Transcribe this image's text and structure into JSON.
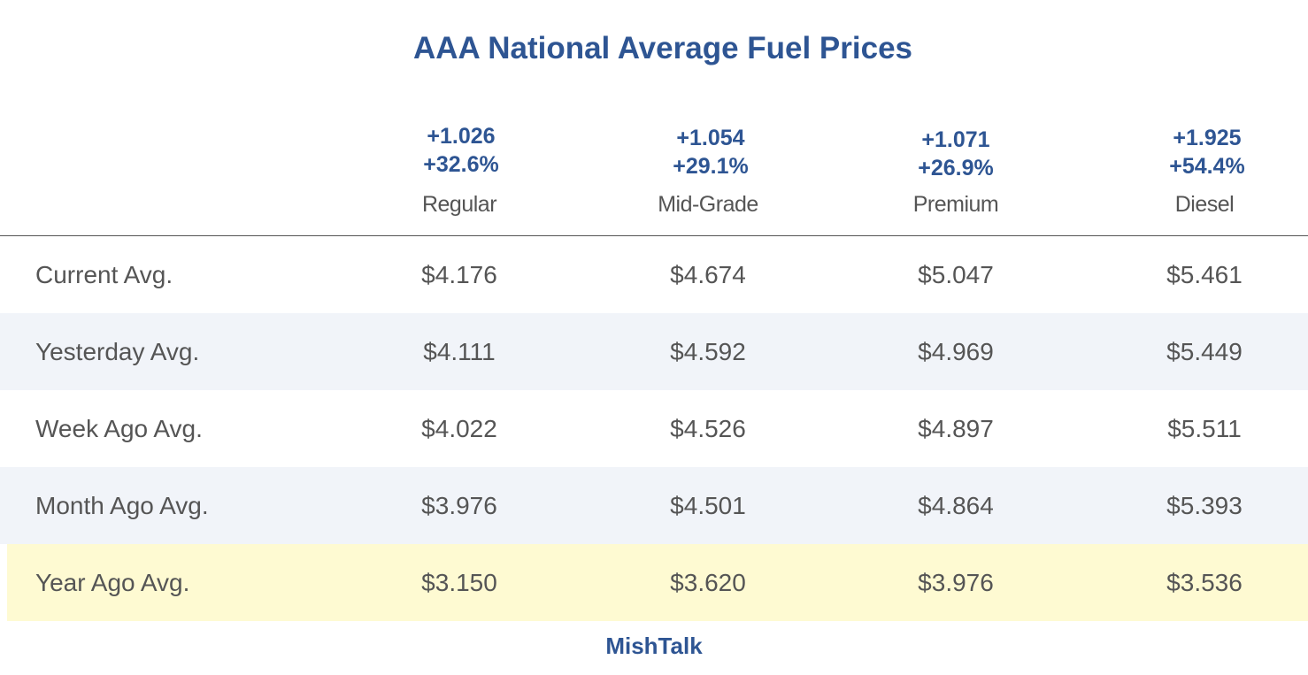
{
  "title": "AAA National Average Fuel Prices",
  "footer": "MishTalk",
  "colors": {
    "accent": "#2e5593",
    "text": "#555555",
    "row_shade": "#f1f4f9",
    "row_highlight": "#fefad2"
  },
  "chart_data": {
    "type": "table",
    "title": "AAA National Average Fuel Prices",
    "columns": [
      {
        "name": "Regular",
        "change_abs": "+1.026",
        "change_pct": "+32.6%"
      },
      {
        "name": "Mid-Grade",
        "change_abs": "+1.054",
        "change_pct": "+29.1%"
      },
      {
        "name": "Premium",
        "change_abs": "+1.071",
        "change_pct": "+26.9%"
      },
      {
        "name": "Diesel",
        "change_abs": "+1.925",
        "change_pct": "+54.4%"
      }
    ],
    "rows": [
      {
        "label": "Current Avg.",
        "values": [
          "$4.176",
          "$4.674",
          "$5.047",
          "$5.461"
        ]
      },
      {
        "label": "Yesterday Avg.",
        "values": [
          "$4.111",
          "$4.592",
          "$4.969",
          "$5.449"
        ]
      },
      {
        "label": "Week Ago Avg.",
        "values": [
          "$4.022",
          "$4.526",
          "$4.897",
          "$5.511"
        ]
      },
      {
        "label": "Month Ago Avg.",
        "values": [
          "$3.976",
          "$4.501",
          "$4.864",
          "$5.393"
        ]
      },
      {
        "label": "Year Ago Avg.",
        "values": [
          "$3.150",
          "$3.620",
          "$3.976",
          "$3.536"
        ]
      }
    ]
  }
}
